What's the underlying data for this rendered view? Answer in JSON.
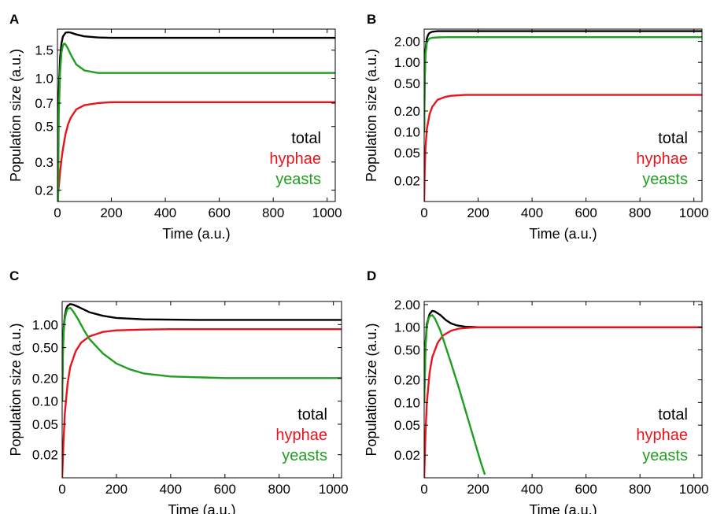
{
  "figure": {
    "series_colors": {
      "total": "#000000",
      "hyphae": "#e8141b",
      "yeasts": "#1f9e1f"
    }
  },
  "chart_data": [
    {
      "panel_label": "A",
      "type": "line",
      "xlabel": "Time (a.u.)",
      "ylabel": "Population size (a.u.)",
      "y_scale": "log",
      "xlim": [
        0,
        1030
      ],
      "ylim": [
        0.17,
        2.03
      ],
      "x_ticks": [
        "0",
        "200",
        "400",
        "600",
        "800",
        "1000"
      ],
      "y_ticks": [
        "0.2",
        "0.3",
        "0.5",
        "0.7",
        "1.0",
        "1.5"
      ],
      "legend": [
        "total",
        "hyphae",
        "yeasts"
      ],
      "legend_position": "lower-right",
      "grid": false,
      "series": [
        {
          "name": "total",
          "x": [
            0,
            5,
            10,
            15,
            20,
            30,
            40,
            50,
            70,
            100,
            150,
            200,
            300,
            500,
            1030
          ],
          "y": [
            0.18,
            0.8,
            1.35,
            1.65,
            1.82,
            1.93,
            1.94,
            1.93,
            1.88,
            1.83,
            1.8,
            1.79,
            1.79,
            1.79,
            1.79
          ]
        },
        {
          "name": "hyphae",
          "x": [
            0,
            5,
            10,
            15,
            20,
            30,
            40,
            50,
            70,
            100,
            150,
            200,
            300,
            500,
            1030
          ],
          "y": [
            0.17,
            0.21,
            0.26,
            0.31,
            0.36,
            0.45,
            0.52,
            0.57,
            0.64,
            0.68,
            0.7,
            0.71,
            0.71,
            0.71,
            0.71
          ]
        },
        {
          "name": "yeasts",
          "x": [
            0,
            5,
            10,
            15,
            20,
            25,
            30,
            40,
            50,
            70,
            100,
            150,
            200,
            300,
            500,
            1030
          ],
          "y": [
            0.05,
            0.6,
            1.1,
            1.45,
            1.6,
            1.65,
            1.63,
            1.52,
            1.4,
            1.22,
            1.12,
            1.08,
            1.08,
            1.08,
            1.08,
            1.08
          ]
        }
      ]
    },
    {
      "panel_label": "B",
      "type": "line",
      "xlabel": "Time (a.u.)",
      "ylabel": "Population size (a.u.)",
      "y_scale": "log",
      "xlim": [
        0,
        1030
      ],
      "ylim": [
        0.01,
        3.0
      ],
      "x_ticks": [
        "0",
        "200",
        "400",
        "600",
        "800",
        "1000"
      ],
      "y_ticks": [
        "0.02",
        "0.05",
        "0.10",
        "0.20",
        "0.50",
        "1.00",
        "2.00"
      ],
      "legend": [
        "total",
        "hyphae",
        "yeasts"
      ],
      "legend_position": "lower-right",
      "grid": false,
      "series": [
        {
          "name": "total",
          "x": [
            0,
            2,
            5,
            10,
            15,
            20,
            30,
            50,
            80,
            120,
            200,
            400,
            1030
          ],
          "y": [
            0.1,
            0.6,
            1.5,
            2.2,
            2.5,
            2.65,
            2.75,
            2.8,
            2.8,
            2.8,
            2.8,
            2.8,
            2.8
          ]
        },
        {
          "name": "hyphae",
          "x": [
            0,
            2,
            5,
            10,
            20,
            30,
            50,
            80,
            100,
            150,
            200,
            300,
            1030
          ],
          "y": [
            0.01,
            0.03,
            0.06,
            0.11,
            0.18,
            0.23,
            0.29,
            0.32,
            0.33,
            0.34,
            0.34,
            0.34,
            0.34
          ]
        },
        {
          "name": "yeasts",
          "x": [
            0,
            2,
            5,
            10,
            15,
            20,
            30,
            50,
            80,
            120,
            200,
            400,
            1030
          ],
          "y": [
            0.1,
            0.55,
            1.3,
            1.9,
            2.1,
            2.2,
            2.25,
            2.28,
            2.3,
            2.3,
            2.3,
            2.3,
            2.3
          ]
        }
      ]
    },
    {
      "panel_label": "C",
      "type": "line",
      "xlabel": "Time (a.u.)",
      "ylabel": "Population size (a.u.)",
      "y_scale": "log",
      "xlim": [
        0,
        1030
      ],
      "ylim": [
        0.01,
        2.0
      ],
      "x_ticks": [
        "0",
        "200",
        "400",
        "600",
        "800",
        "1000"
      ],
      "y_ticks": [
        "0.02",
        "0.05",
        "0.10",
        "0.20",
        "0.50",
        "1.00"
      ],
      "legend": [
        "total",
        "hyphae",
        "yeasts"
      ],
      "legend_position": "lower-right",
      "grid": false,
      "series": [
        {
          "name": "total",
          "x": [
            0,
            3,
            6,
            10,
            15,
            20,
            30,
            40,
            60,
            100,
            150,
            200,
            300,
            500,
            1030
          ],
          "y": [
            0.1,
            0.5,
            0.95,
            1.3,
            1.6,
            1.75,
            1.85,
            1.82,
            1.7,
            1.45,
            1.3,
            1.22,
            1.17,
            1.15,
            1.15
          ]
        },
        {
          "name": "hyphae",
          "x": [
            0,
            5,
            10,
            20,
            30,
            50,
            70,
            100,
            150,
            200,
            300,
            400,
            600,
            1030
          ],
          "y": [
            0.01,
            0.03,
            0.07,
            0.17,
            0.28,
            0.45,
            0.58,
            0.7,
            0.8,
            0.84,
            0.86,
            0.87,
            0.87,
            0.87
          ]
        },
        {
          "name": "yeasts",
          "x": [
            0,
            3,
            6,
            10,
            15,
            20,
            30,
            40,
            60,
            80,
            100,
            150,
            200,
            250,
            300,
            400,
            600,
            1030
          ],
          "y": [
            0.1,
            0.45,
            0.85,
            1.2,
            1.45,
            1.6,
            1.65,
            1.5,
            1.15,
            0.85,
            0.65,
            0.42,
            0.31,
            0.26,
            0.23,
            0.21,
            0.2,
            0.2
          ]
        }
      ]
    },
    {
      "panel_label": "D",
      "type": "line",
      "xlabel": "Time (a.u.)",
      "ylabel": "Population size (a.u.)",
      "y_scale": "log",
      "xlim": [
        0,
        1030
      ],
      "ylim": [
        0.01,
        2.2
      ],
      "x_ticks": [
        "0",
        "200",
        "400",
        "600",
        "800",
        "1000"
      ],
      "y_ticks": [
        "0.02",
        "0.05",
        "0.10",
        "0.20",
        "0.50",
        "1.00",
        "2.00"
      ],
      "legend": [
        "total",
        "hyphae",
        "yeasts"
      ],
      "legend_position": "lower-right",
      "grid": false,
      "series": [
        {
          "name": "total",
          "x": [
            0,
            5,
            10,
            20,
            30,
            40,
            60,
            80,
            100,
            120,
            150,
            200,
            300,
            1030
          ],
          "y": [
            0.1,
            0.6,
            1.1,
            1.5,
            1.65,
            1.62,
            1.45,
            1.25,
            1.12,
            1.06,
            1.02,
            1.0,
            1.0,
            1.0
          ]
        },
        {
          "name": "hyphae",
          "x": [
            0,
            5,
            10,
            20,
            30,
            50,
            70,
            100,
            130,
            160,
            200,
            300,
            1030
          ],
          "y": [
            0.01,
            0.04,
            0.1,
            0.25,
            0.4,
            0.62,
            0.78,
            0.9,
            0.96,
            0.98,
            1.0,
            1.0,
            1.0
          ]
        },
        {
          "name": "yeasts",
          "x": [
            0,
            5,
            10,
            15,
            20,
            30,
            40,
            60,
            80,
            100,
            130,
            160,
            190,
            210,
            225
          ],
          "y": [
            0.1,
            0.55,
            1.0,
            1.25,
            1.4,
            1.45,
            1.3,
            0.9,
            0.55,
            0.33,
            0.15,
            0.065,
            0.028,
            0.016,
            0.011
          ]
        }
      ]
    }
  ]
}
